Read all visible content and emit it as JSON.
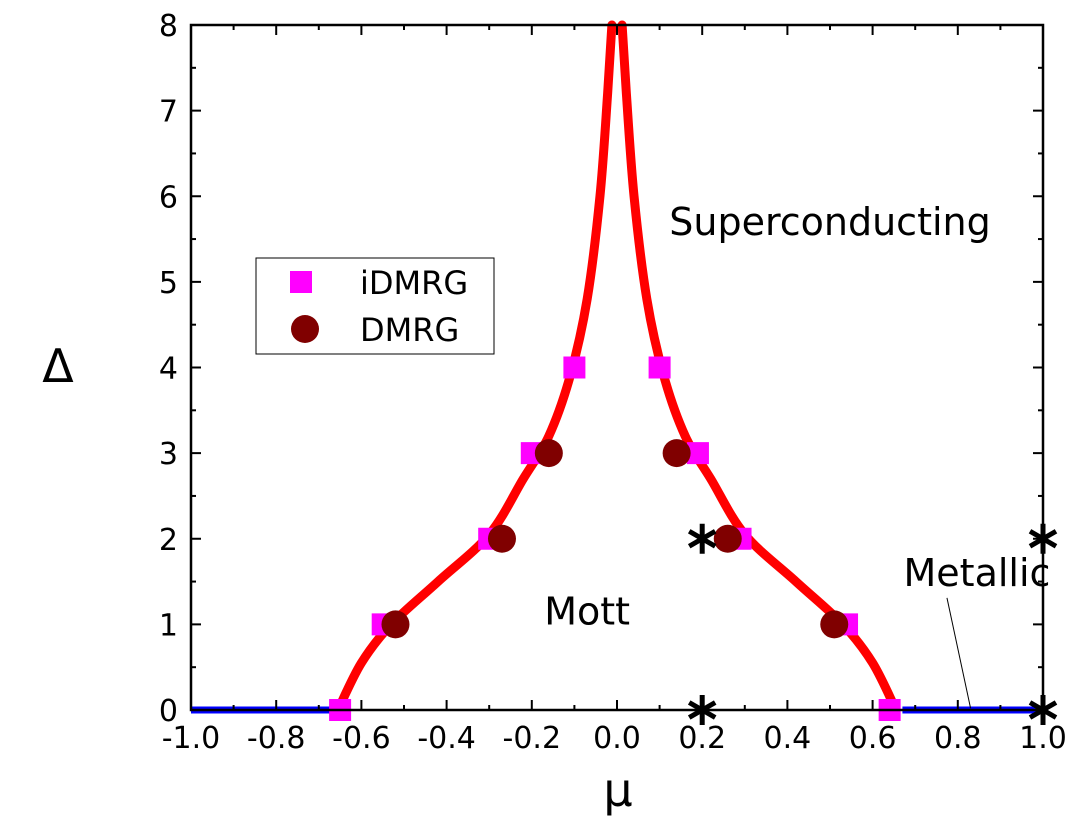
{
  "chart_data": {
    "type": "scatter",
    "title": "",
    "xlabel": "μ",
    "ylabel": "Δ",
    "xlim": [
      -1.0,
      1.0
    ],
    "ylim": [
      0,
      8
    ],
    "x_tick_labels": [
      "-1.0",
      "-0.8",
      "-0.6",
      "-0.4",
      "-0.2",
      "0.0",
      "0.2",
      "0.4",
      "0.6",
      "0.8",
      "1.0"
    ],
    "y_tick_labels": [
      "0",
      "1",
      "2",
      "3",
      "4",
      "5",
      "6",
      "7",
      "8"
    ],
    "grid": false,
    "legend_position": "middle-left",
    "series": [
      {
        "name": "iDMRG",
        "marker": "square",
        "color": "#ff00ff",
        "points": [
          {
            "x": -0.65,
            "y": 0
          },
          {
            "x": -0.55,
            "y": 1
          },
          {
            "x": -0.3,
            "y": 2
          },
          {
            "x": -0.2,
            "y": 3
          },
          {
            "x": -0.1,
            "y": 4
          },
          {
            "x": 0.1,
            "y": 4
          },
          {
            "x": 0.19,
            "y": 3
          },
          {
            "x": 0.29,
            "y": 2
          },
          {
            "x": 0.54,
            "y": 1
          },
          {
            "x": 0.64,
            "y": 0
          }
        ]
      },
      {
        "name": "DMRG",
        "marker": "circle",
        "color": "#800000",
        "points": [
          {
            "x": -0.52,
            "y": 1
          },
          {
            "x": -0.27,
            "y": 2
          },
          {
            "x": -0.16,
            "y": 3
          },
          {
            "x": 0.14,
            "y": 3
          },
          {
            "x": 0.26,
            "y": 2
          },
          {
            "x": 0.51,
            "y": 1
          }
        ]
      }
    ],
    "phase_boundary": {
      "color": "#ff0000",
      "points": [
        {
          "x": -0.655,
          "y": 0
        },
        {
          "x": -0.6,
          "y": 0.55
        },
        {
          "x": -0.53,
          "y": 1.0
        },
        {
          "x": -0.42,
          "y": 1.5
        },
        {
          "x": -0.3,
          "y": 2.05
        },
        {
          "x": -0.22,
          "y": 2.7
        },
        {
          "x": -0.16,
          "y": 3.2
        },
        {
          "x": -0.11,
          "y": 3.9
        },
        {
          "x": -0.07,
          "y": 4.8
        },
        {
          "x": -0.04,
          "y": 6.0
        },
        {
          "x": -0.022,
          "y": 7.2
        },
        {
          "x": -0.012,
          "y": 8.0
        },
        {
          "x": 0.012,
          "y": 8.0
        },
        {
          "x": 0.022,
          "y": 7.2
        },
        {
          "x": 0.04,
          "y": 6.0
        },
        {
          "x": 0.07,
          "y": 4.8
        },
        {
          "x": 0.11,
          "y": 3.9
        },
        {
          "x": 0.16,
          "y": 3.2
        },
        {
          "x": 0.22,
          "y": 2.7
        },
        {
          "x": 0.3,
          "y": 2.05
        },
        {
          "x": 0.42,
          "y": 1.5
        },
        {
          "x": 0.53,
          "y": 1.0
        },
        {
          "x": 0.6,
          "y": 0.55
        },
        {
          "x": 0.655,
          "y": 0
        }
      ]
    },
    "metallic_segments": {
      "color": "#0000ff",
      "ranges": [
        [
          -1.0,
          -0.67
        ],
        [
          0.67,
          1.0
        ]
      ],
      "y": 0
    },
    "star_markers": [
      {
        "x": 0.2,
        "y": 2
      },
      {
        "x": 1.0,
        "y": 2
      },
      {
        "x": 0.2,
        "y": 0
      },
      {
        "x": 1.0,
        "y": 0
      }
    ],
    "annotations": [
      {
        "key": "superconducting",
        "text": "Superconducting",
        "x": 0.5,
        "y": 5.55
      },
      {
        "key": "mott",
        "text": "Mott",
        "x": -0.07,
        "y": 1.0
      },
      {
        "key": "metallic",
        "text": "Metallic",
        "x": 0.845,
        "y": 1.45,
        "arrow_to": {
          "x": 0.83,
          "y": 0.02
        }
      }
    ],
    "legend": [
      {
        "label": "iDMRG",
        "marker": "square",
        "color": "#ff00ff"
      },
      {
        "label": "DMRG",
        "marker": "circle",
        "color": "#800000"
      }
    ]
  }
}
